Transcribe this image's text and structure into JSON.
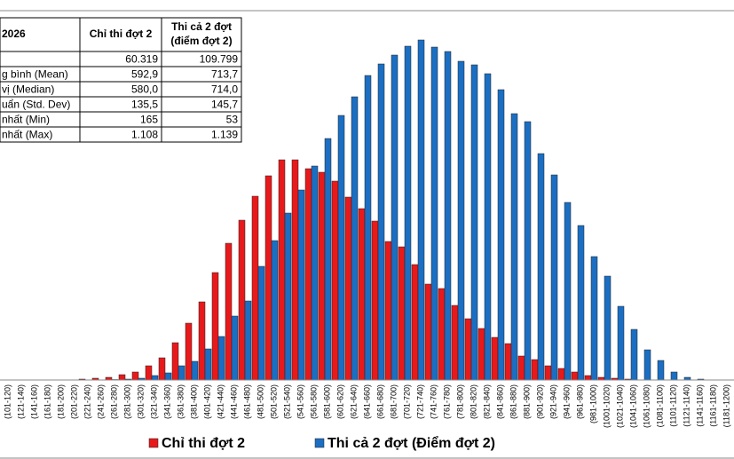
{
  "chart_data": {
    "type": "bar",
    "categories": [
      "(101-120)",
      "(121-140)",
      "(141-160)",
      "(161-180)",
      "(181-200)",
      "(201-220)",
      "(221-240)",
      "(241-260)",
      "(261-280)",
      "(281-300)",
      "(301-320)",
      "(321-340)",
      "(341-360)",
      "(361-380)",
      "(381-400)",
      "(401-420)",
      "(421-440)",
      "(441-460)",
      "(461-480)",
      "(481-500)",
      "(501-520)",
      "(521-540)",
      "(541-560)",
      "(561-580)",
      "(581-600)",
      "(601-620)",
      "(621-640)",
      "(641-660)",
      "(661-680)",
      "(681-700)",
      "(701-720)",
      "(721-740)",
      "(741-760)",
      "(761-780)",
      "(781-800)",
      "(801-820)",
      "(821-840)",
      "(841-860)",
      "(861-880)",
      "(881-900)",
      "(901-920)",
      "(921-940)",
      "(941-960)",
      "(961-980)",
      "(981-1000)",
      "(1001-1020)",
      "(1021-1040)",
      "(1041-1060)",
      "(1061-1080)",
      "(1081-1100)",
      "(1101-1120)",
      "(1121-1140)",
      "(1141-1160)",
      "(1161-1180)",
      "(1181-1200)"
    ],
    "series": [
      {
        "name": "Chỉ thi đợt 2",
        "color": "#e8191b",
        "values": [
          0,
          0,
          0,
          0,
          0,
          0,
          16,
          32,
          48,
          96,
          144,
          256,
          400,
          672,
          1024,
          1408,
          1936,
          2464,
          2880,
          3312,
          3680,
          3968,
          3968,
          3808,
          3744,
          3584,
          3296,
          3088,
          2864,
          2496,
          2400,
          2080,
          1728,
          1648,
          1344,
          1104,
          928,
          768,
          656,
          432,
          368,
          256,
          208,
          144,
          80,
          48,
          32,
          16,
          0,
          0,
          0,
          0,
          0,
          0,
          0
        ]
      },
      {
        "name": "Thi cả 2 đợt (Điểm đợt 2)",
        "color": "#1b6ec2",
        "values": [
          0,
          0,
          0,
          0,
          0,
          0,
          0,
          0,
          8,
          16,
          32,
          80,
          128,
          256,
          336,
          560,
          784,
          1152,
          1424,
          2048,
          2512,
          3008,
          3424,
          3856,
          4352,
          4768,
          5104,
          5488,
          5696,
          5856,
          6016,
          6128,
          6000,
          5920,
          5744,
          5680,
          5520,
          5232,
          4800,
          4656,
          4080,
          3696,
          3200,
          2784,
          2224,
          1872,
          1328,
          912,
          544,
          352,
          144,
          48,
          16,
          0,
          0
        ]
      }
    ],
    "ylim": [
      0,
      6500
    ]
  },
  "table": {
    "header": [
      "2026",
      "Chỉ thi đợt 2",
      "Thi cả 2 đợt",
      "(điểm đợt 2)"
    ],
    "rows": [
      [
        null,
        "60.319",
        "109.799"
      ],
      [
        "g bình (Mean)",
        "592,9",
        "713,7"
      ],
      [
        "vị (Median)",
        "580,0",
        "714,0"
      ],
      [
        "uẩn (Std. Dev)",
        "135,5",
        "145,7"
      ],
      [
        "nhất (Min)",
        "165",
        "53"
      ],
      [
        "nhất (Max)",
        "1.108",
        "1.139"
      ]
    ]
  }
}
